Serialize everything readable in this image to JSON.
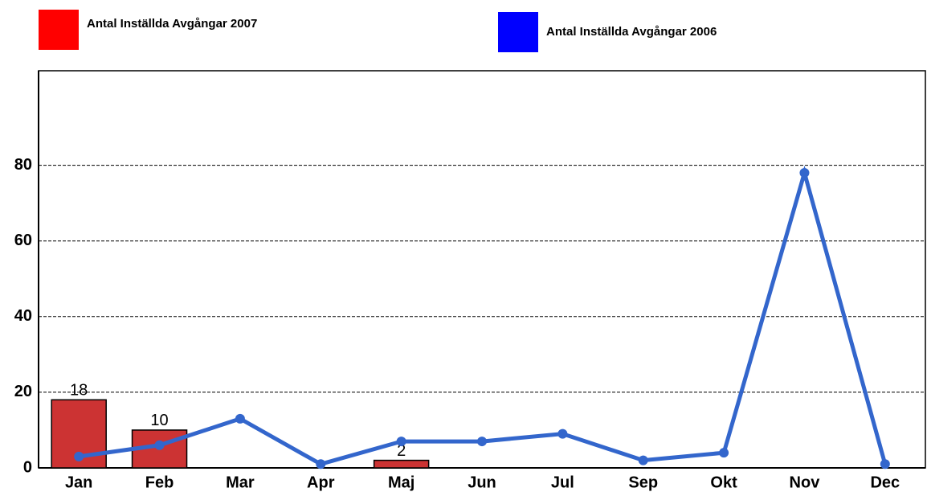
{
  "chart_data": {
    "type": "bar-line",
    "categories": [
      "Jan",
      "Feb",
      "Mar",
      "Apr",
      "Maj",
      "Jun",
      "Jul",
      "Sep",
      "Okt",
      "Nov",
      "Dec"
    ],
    "series": [
      {
        "name": "Antal Inställda Avgångar 2007",
        "type": "bar",
        "color": "#cc3333",
        "legend_color": "#ff0000",
        "values": [
          18,
          10,
          null,
          null,
          2,
          null,
          null,
          null,
          null,
          null,
          null
        ],
        "data_labels": true
      },
      {
        "name": "Antal Inställda Avgångar 2006",
        "type": "line",
        "color": "#3366cc",
        "legend_color": "#0000ff",
        "values": [
          3,
          6,
          13,
          1,
          7,
          7,
          9,
          2,
          4,
          78,
          1
        ]
      }
    ],
    "ylim": [
      0,
      105
    ],
    "yticks": [
      0,
      20,
      40,
      60,
      80
    ],
    "grid": true
  }
}
